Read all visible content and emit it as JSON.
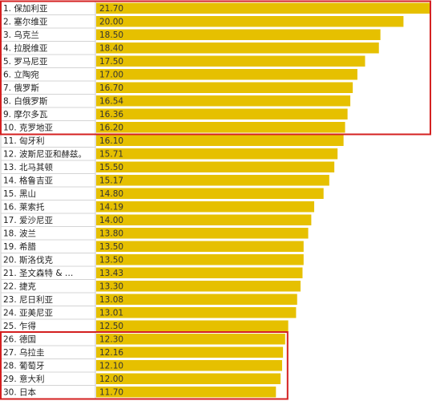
{
  "chart_data": {
    "type": "bar",
    "orientation": "horizontal",
    "categories": [
      "1. 保加利亚",
      "2. 塞尔维亚",
      "3. 乌克兰",
      "4. 拉脱维亚",
      "5. 罗马尼亚",
      "6. 立陶宛",
      "7. 俄罗斯",
      "8. 白俄罗斯",
      "9. 摩尔多瓦",
      "10. 克罗地亚",
      "11. 匈牙利",
      "12. 波斯尼亚和赫兹。",
      "13. 北马其顿",
      "14. 格鲁吉亚",
      "15. 黑山",
      "16. 莱索托",
      "17. 爱沙尼亚",
      "18. 波兰",
      "19. 希腊",
      "20. 斯洛伐克",
      "21. 圣文森特 & …",
      "22. 捷克",
      "23. 尼日利亚",
      "24. 亚美尼亚",
      "25. 乍得",
      "26. 德国",
      "27. 乌拉圭",
      "28. 葡萄牙",
      "29. 意大利",
      "30. 日本"
    ],
    "values": [
      21.7,
      20.0,
      18.5,
      18.4,
      17.5,
      17.0,
      16.7,
      16.54,
      16.36,
      16.2,
      16.1,
      15.71,
      15.5,
      15.17,
      14.8,
      14.19,
      14.0,
      13.8,
      13.5,
      13.5,
      13.43,
      13.3,
      13.08,
      13.01,
      12.5,
      12.3,
      12.16,
      12.1,
      12.0,
      11.7
    ],
    "value_labels": [
      "21.70",
      "20.00",
      "18.50",
      "18.40",
      "17.50",
      "17.00",
      "16.70",
      "16.54",
      "16.36",
      "16.20",
      "16.10",
      "15.71",
      "15.50",
      "15.17",
      "14.80",
      "14.19",
      "14.00",
      "13.80",
      "13.50",
      "13.50",
      "13.43",
      "13.30",
      "13.08",
      "13.01",
      "12.50",
      "12.30",
      "12.16",
      "12.10",
      "12.00",
      "11.70"
    ],
    "bar_color": "#e6c000",
    "highlight_color": "#d42020",
    "highlight_groups": [
      [
        1,
        10
      ],
      [
        26,
        30
      ]
    ]
  }
}
